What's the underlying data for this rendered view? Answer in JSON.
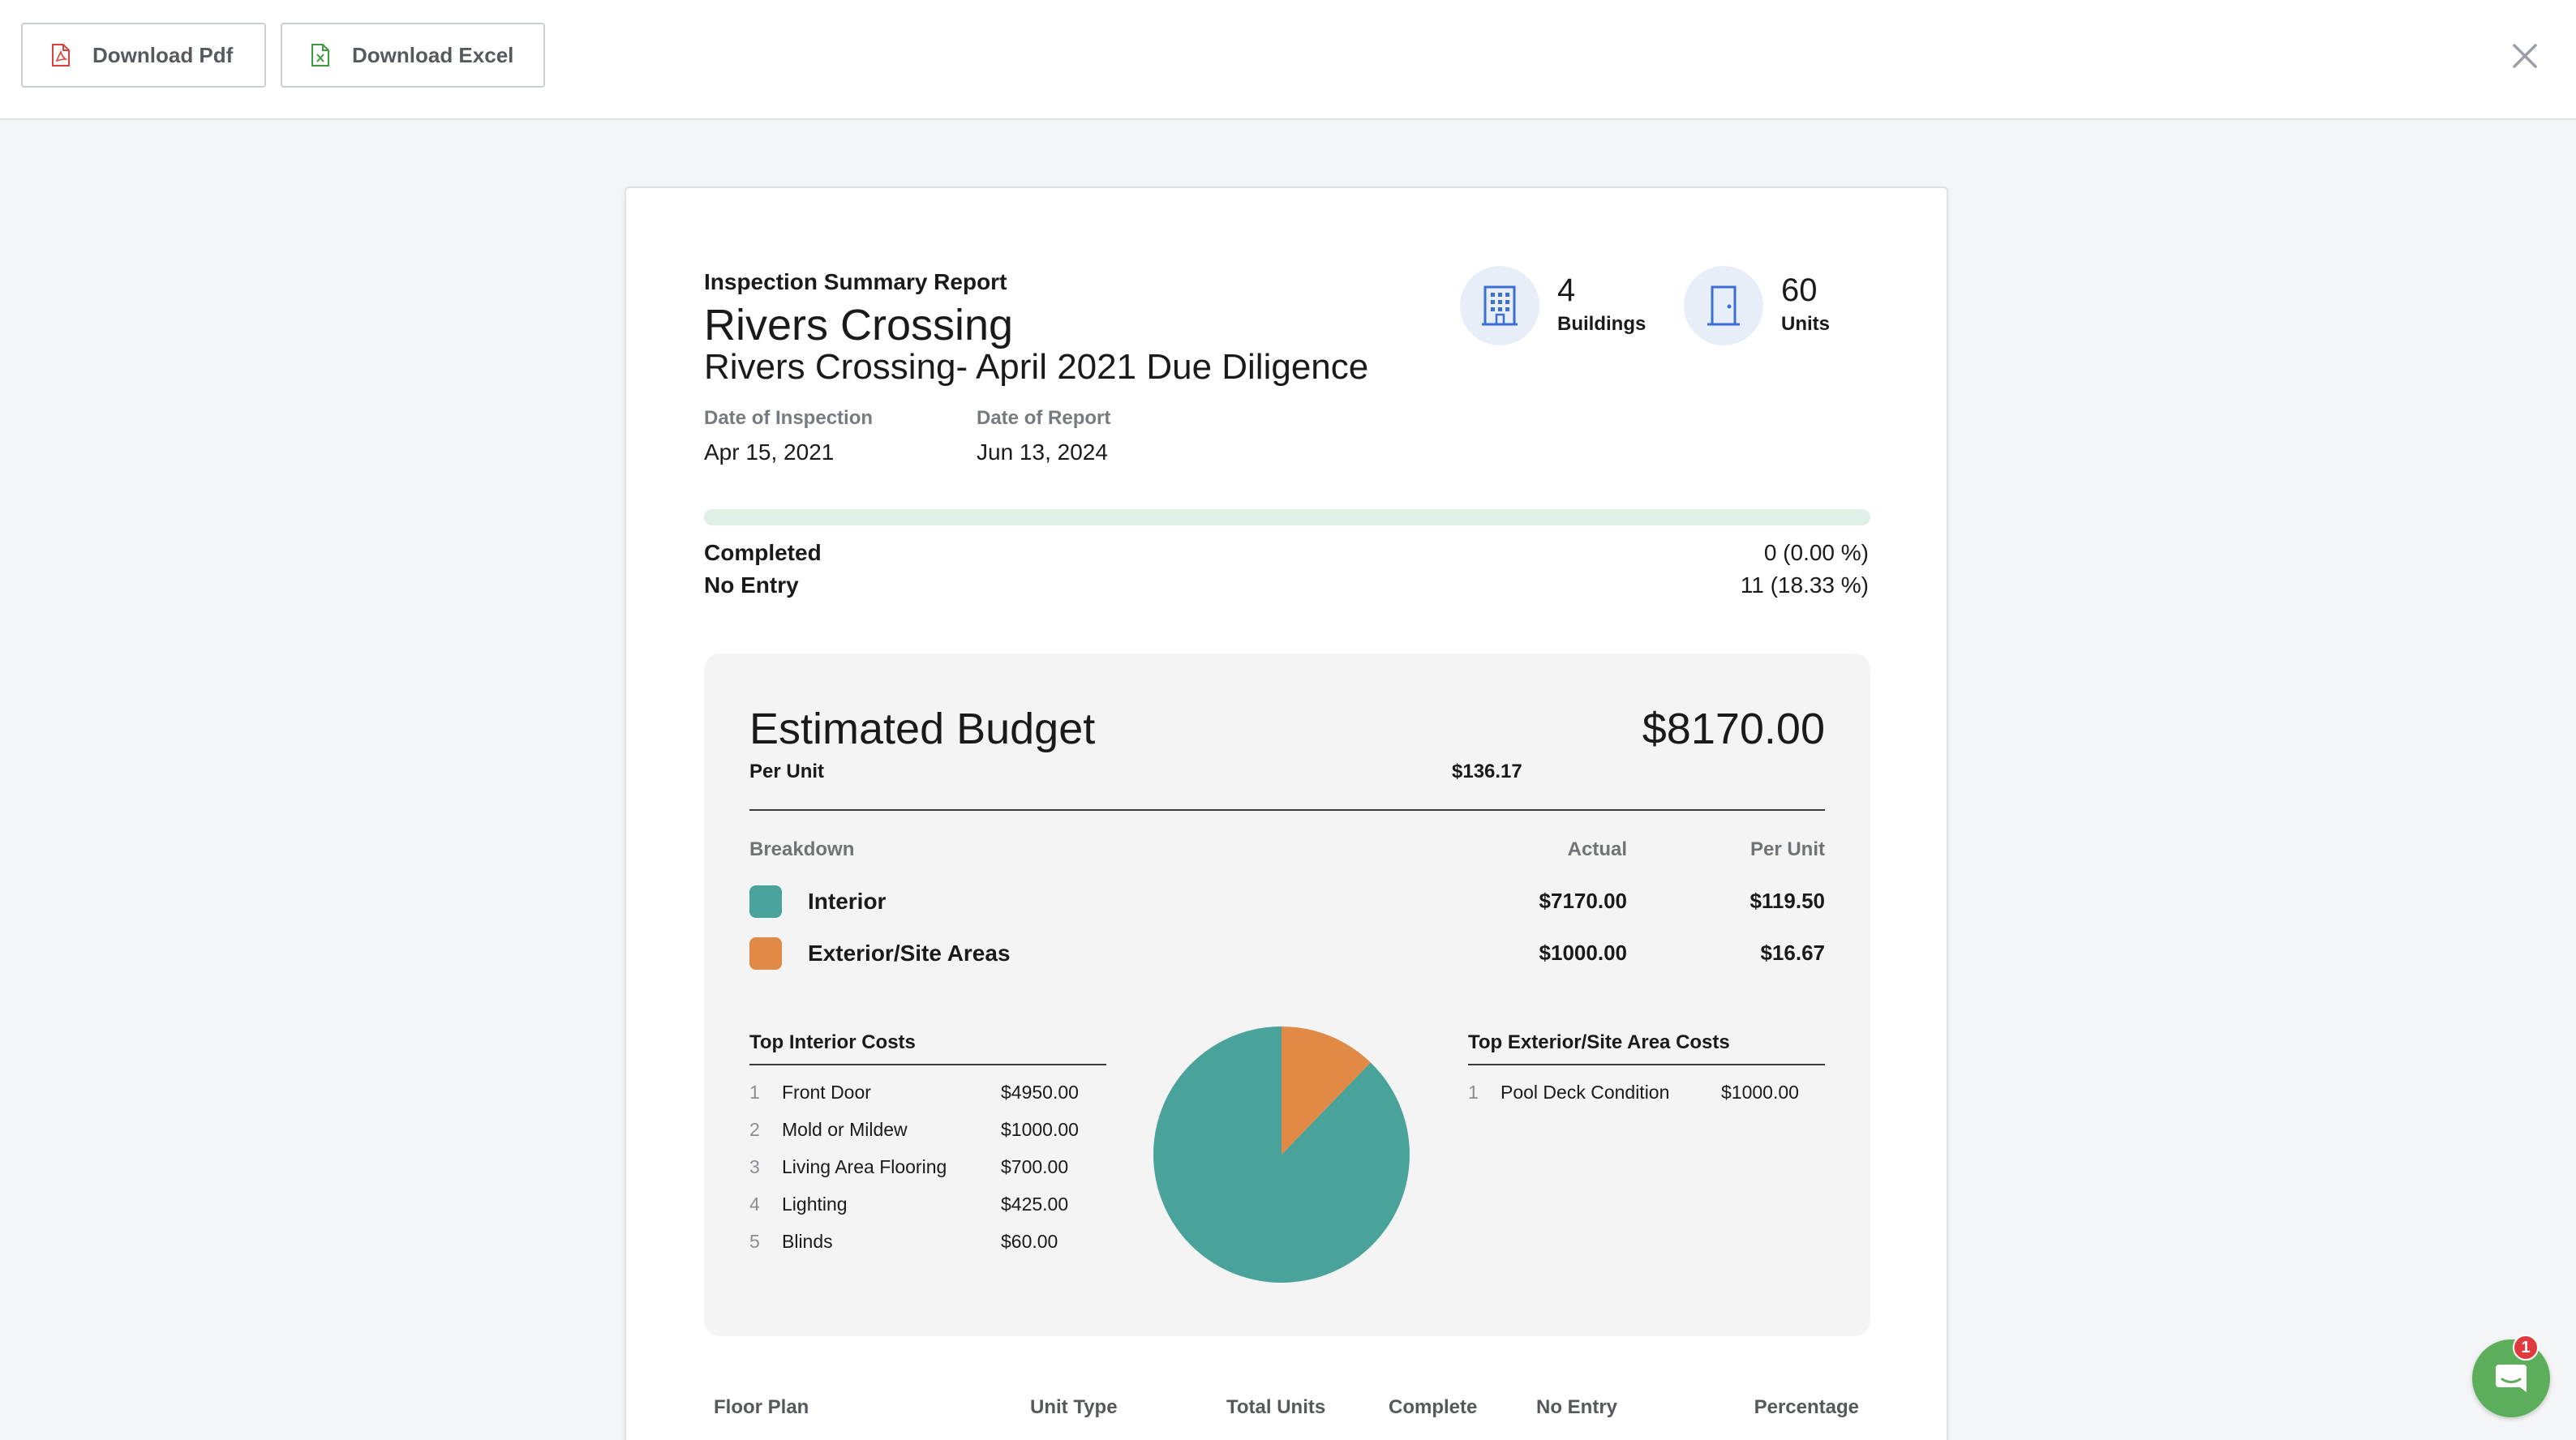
{
  "toolbar": {
    "download_pdf_label": "Download Pdf",
    "download_excel_label": "Download Excel",
    "pdf_icon_color": "#d9433c",
    "excel_icon_color": "#3c9b3c"
  },
  "report": {
    "kicker": "Inspection Summary Report",
    "title": "Rivers Crossing",
    "subtitle": "Rivers Crossing- April 2021 Due Diligence",
    "date_of_inspection_label": "Date of Inspection",
    "date_of_inspection": "Apr 15, 2021",
    "date_of_report_label": "Date of Report",
    "date_of_report": "Jun 13, 2024",
    "stats": {
      "buildings_count": "4",
      "buildings_label": "Buildings",
      "units_count": "60",
      "units_label": "Units"
    },
    "progress": {
      "completed_fraction": 0.0,
      "completed_label": "Completed",
      "completed_value": "0 (0.00 %)",
      "no_entry_label": "No Entry",
      "no_entry_value": "11 (18.33 %)"
    }
  },
  "budget": {
    "title": "Estimated Budget",
    "total": "$8170.00",
    "per_unit_label": "Per Unit",
    "per_unit_value": "$136.17",
    "breakdown_label": "Breakdown",
    "actual_label": "Actual",
    "per_unit_col_label": "Per Unit",
    "categories": [
      {
        "name": "Interior",
        "actual": "$7170.00",
        "per_unit": "$119.50",
        "color": "#4aa39a"
      },
      {
        "name": "Exterior/Site Areas",
        "actual": "$1000.00",
        "per_unit": "$16.67",
        "color": "#e08a45"
      }
    ],
    "top_interior": {
      "title": "Top Interior Costs",
      "items": [
        {
          "idx": "1",
          "name": "Front Door",
          "cost": "$4950.00"
        },
        {
          "idx": "2",
          "name": "Mold or Mildew",
          "cost": "$1000.00"
        },
        {
          "idx": "3",
          "name": "Living Area Flooring",
          "cost": "$700.00"
        },
        {
          "idx": "4",
          "name": "Lighting",
          "cost": "$425.00"
        },
        {
          "idx": "5",
          "name": "Blinds",
          "cost": "$60.00"
        }
      ]
    },
    "top_exterior": {
      "title": "Top Exterior/Site Area Costs",
      "items": [
        {
          "idx": "1",
          "name": "Pool Deck Condition",
          "cost": "$1000.00"
        }
      ]
    }
  },
  "chart_data": {
    "type": "pie",
    "categories": [
      "Interior",
      "Exterior/Site Areas"
    ],
    "values": [
      7170,
      1000
    ],
    "colors": [
      "#4aa39a",
      "#e08a45"
    ]
  },
  "floor_plan_table": {
    "headers": [
      "Floor Plan",
      "Unit Type",
      "Total Units",
      "Complete",
      "No Entry",
      "Percentage"
    ]
  },
  "chat": {
    "badge_count": "1"
  }
}
